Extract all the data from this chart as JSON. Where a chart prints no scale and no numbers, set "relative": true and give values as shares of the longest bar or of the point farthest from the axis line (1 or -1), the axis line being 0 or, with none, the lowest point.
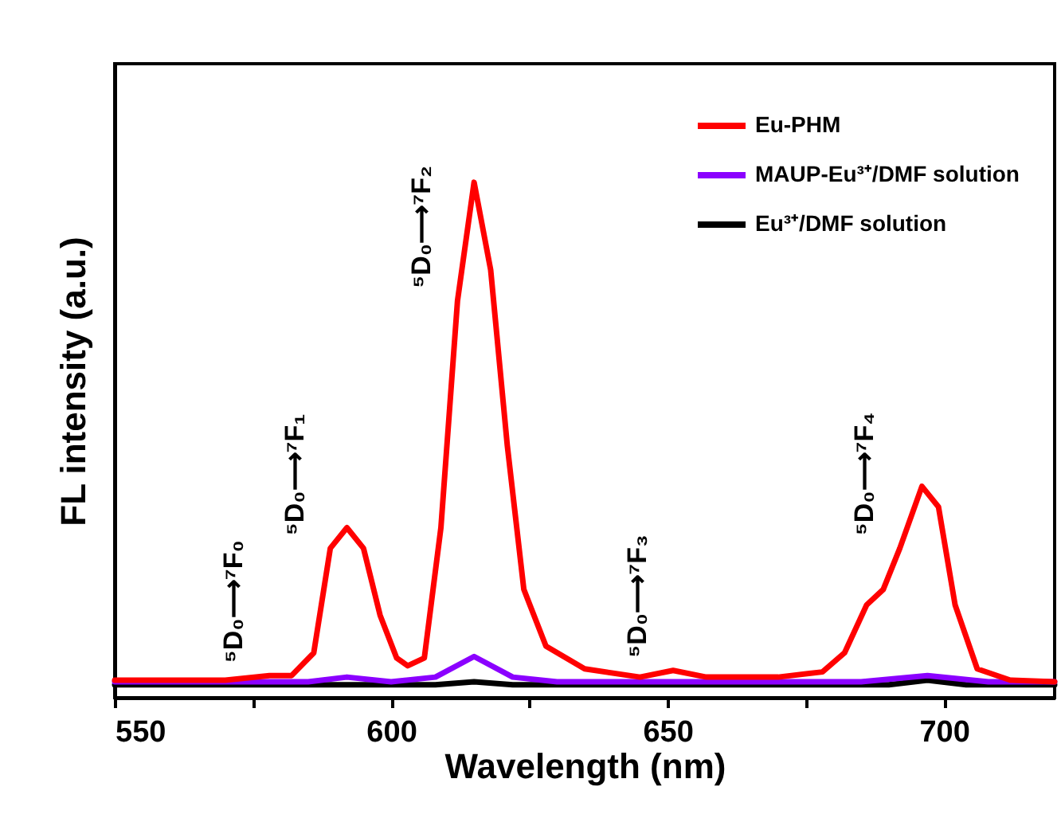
{
  "chart_data": {
    "type": "line",
    "relative": true,
    "xlabel": "Wavelength (nm)",
    "ylabel": "FL intensity (a.u.)",
    "xlim": [
      550,
      720
    ],
    "xticks": [
      550,
      {
        "value": 575,
        "label": null
      },
      600,
      {
        "value": 625,
        "label": null
      },
      650,
      {
        "value": 675,
        "label": null
      },
      700
    ],
    "legend": "top right",
    "grid": false,
    "line_style": "solid",
    "marker": "none",
    "series": [
      {
        "name": "Eu-PHM",
        "color": "#ff0000",
        "x": [
          550,
          570,
          578,
          582,
          586,
          589,
          592,
          595,
          598,
          601,
          603,
          606,
          609,
          612,
          615,
          618,
          621,
          624,
          628,
          635,
          645,
          651,
          657,
          670,
          678,
          682,
          686,
          689,
          692,
          696,
          699,
          702,
          706,
          712,
          720
        ],
        "values": [
          0.034,
          0.034,
          0.043,
          0.043,
          0.087,
          0.29,
          0.33,
          0.29,
          0.16,
          0.077,
          0.062,
          0.077,
          0.33,
          0.77,
          1,
          0.83,
          0.49,
          0.21,
          0.1,
          0.056,
          0.04,
          0.053,
          0.04,
          0.04,
          0.05,
          0.087,
          0.18,
          0.21,
          0.29,
          0.41,
          0.37,
          0.18,
          0.056,
          0.034,
          0.031
        ]
      },
      {
        "name": "MAUP-Eu³⁺/DMF solution",
        "color": "#8b00ff",
        "x": [
          550,
          585,
          592,
          600,
          608,
          615,
          622,
          630,
          685,
          697,
          708,
          720
        ],
        "values": [
          0.031,
          0.031,
          0.04,
          0.031,
          0.04,
          0.08,
          0.04,
          0.031,
          0.031,
          0.043,
          0.031,
          0.031
        ]
      },
      {
        "name": "Eu³⁺/DMF solution",
        "color": "#000000",
        "x": [
          550,
          608,
          615,
          622,
          690,
          697,
          704,
          720
        ],
        "values": [
          0.025,
          0.025,
          0.031,
          0.025,
          0.025,
          0.034,
          0.025,
          0.025
        ]
      }
    ],
    "annotations": [
      {
        "text": "⁵D₀⟶⁷F₀",
        "x": 578,
        "y": 0.043
      },
      {
        "text": "⁵D₀⟶⁷F₁",
        "x": 589,
        "y": 0.29
      },
      {
        "text": "⁵D₀⟶⁷F₂",
        "x": 612,
        "y": 0.77
      },
      {
        "text": "⁵D₀⟶⁷F₃",
        "x": 651,
        "y": 0.053
      },
      {
        "text": "⁵D₀⟶⁷F₄",
        "x": 692,
        "y": 0.29
      }
    ]
  }
}
